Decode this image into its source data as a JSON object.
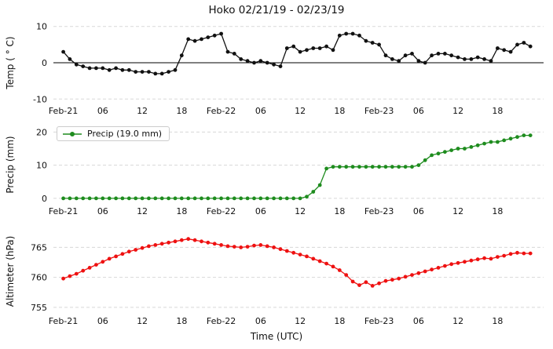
{
  "title": "Hoko 02/21/19 - 02/23/19",
  "xlabel": "Time (UTC)",
  "x_axis": {
    "xlim": [
      -1.5,
      73.0
    ],
    "tick_positions": [
      0,
      6,
      12,
      18,
      24,
      30,
      36,
      42,
      48,
      54,
      60,
      66
    ],
    "tick_labels": [
      "Feb-21",
      "06",
      "12",
      "18",
      "Feb-22",
      "06",
      "12",
      "18",
      "Feb-23",
      "06",
      "12",
      "18"
    ]
  },
  "legend": {
    "precip_label": "Precip (19.0 mm)"
  },
  "chart_data": [
    {
      "type": "line",
      "name": "Temperature",
      "ylabel": "Temp ( ° C)",
      "color": "#111111",
      "ylim": [
        -10.8,
        10.8
      ],
      "yticks": [
        10,
        0,
        -10
      ],
      "zero_line": true,
      "grid": "dashed",
      "values": [
        3,
        1,
        -0.5,
        -1,
        -1.5,
        -1.5,
        -1.5,
        -2,
        -1.5,
        -2,
        -2,
        -2.5,
        -2.5,
        -2.5,
        -3,
        -3,
        -2.5,
        -2,
        2,
        6.5,
        6,
        6.5,
        7,
        7.5,
        8,
        3,
        2.5,
        1,
        0.5,
        0,
        0.5,
        0,
        -0.5,
        -1,
        4,
        4.5,
        3,
        3.5,
        4,
        4,
        4.5,
        3.5,
        7.5,
        8,
        8,
        7.5,
        6,
        5.5,
        5,
        2,
        1,
        0.5,
        2,
        2.5,
        0.5,
        0,
        2,
        2.5,
        2.5,
        2,
        1.5,
        1,
        1,
        1.5,
        1,
        0.5,
        4,
        3.5,
        3,
        5,
        5.5,
        4.5
      ]
    },
    {
      "type": "line",
      "name": "Precipitation (cumulative)",
      "ylabel": "Precip (mm)",
      "color": "#1e8c1e",
      "ylim": [
        -1.2,
        21.5
      ],
      "yticks": [
        20,
        10,
        0
      ],
      "zero_line": false,
      "grid": "dashed",
      "values": [
        0,
        0,
        0,
        0,
        0,
        0,
        0,
        0,
        0,
        0,
        0,
        0,
        0,
        0,
        0,
        0,
        0,
        0,
        0,
        0,
        0,
        0,
        0,
        0,
        0,
        0,
        0,
        0,
        0,
        0,
        0,
        0,
        0,
        0,
        0,
        0,
        0,
        0.5,
        2,
        4,
        9,
        9.5,
        9.5,
        9.5,
        9.5,
        9.5,
        9.5,
        9.5,
        9.5,
        9.5,
        9.5,
        9.5,
        9.5,
        9.5,
        10,
        11.5,
        13,
        13.5,
        14,
        14.5,
        15,
        15,
        15.5,
        16,
        16.5,
        17,
        17,
        17.5,
        18,
        18.5,
        19,
        19
      ]
    },
    {
      "type": "line",
      "name": "Altimeter",
      "ylabel": "Altimeter (hPa)",
      "color": "#ee1111",
      "ylim": [
        754.2,
        767.8
      ],
      "yticks": [
        765,
        760,
        755
      ],
      "zero_line": false,
      "grid": "dashed",
      "values": [
        759.8,
        760.2,
        760.6,
        761.1,
        761.6,
        762.1,
        762.6,
        763.1,
        763.5,
        763.9,
        764.3,
        764.6,
        764.9,
        765.2,
        765.4,
        765.6,
        765.8,
        766.0,
        766.2,
        766.4,
        766.2,
        766.0,
        765.8,
        765.6,
        765.4,
        765.2,
        765.1,
        765.0,
        765.1,
        765.3,
        765.4,
        765.2,
        765.0,
        764.7,
        764.4,
        764.1,
        763.8,
        763.5,
        763.1,
        762.7,
        762.3,
        761.8,
        761.2,
        760.4,
        759.3,
        758.7,
        759.2,
        758.6,
        759.0,
        759.4,
        759.6,
        759.8,
        760.1,
        760.4,
        760.7,
        761.0,
        761.3,
        761.6,
        761.9,
        762.2,
        762.4,
        762.6,
        762.8,
        763.0,
        763.2,
        763.1,
        763.4,
        763.6,
        763.9,
        764.1,
        764.0,
        764.0
      ]
    }
  ],
  "style": {
    "grid_color": "#d8d8d8",
    "background": "#ffffff"
  }
}
